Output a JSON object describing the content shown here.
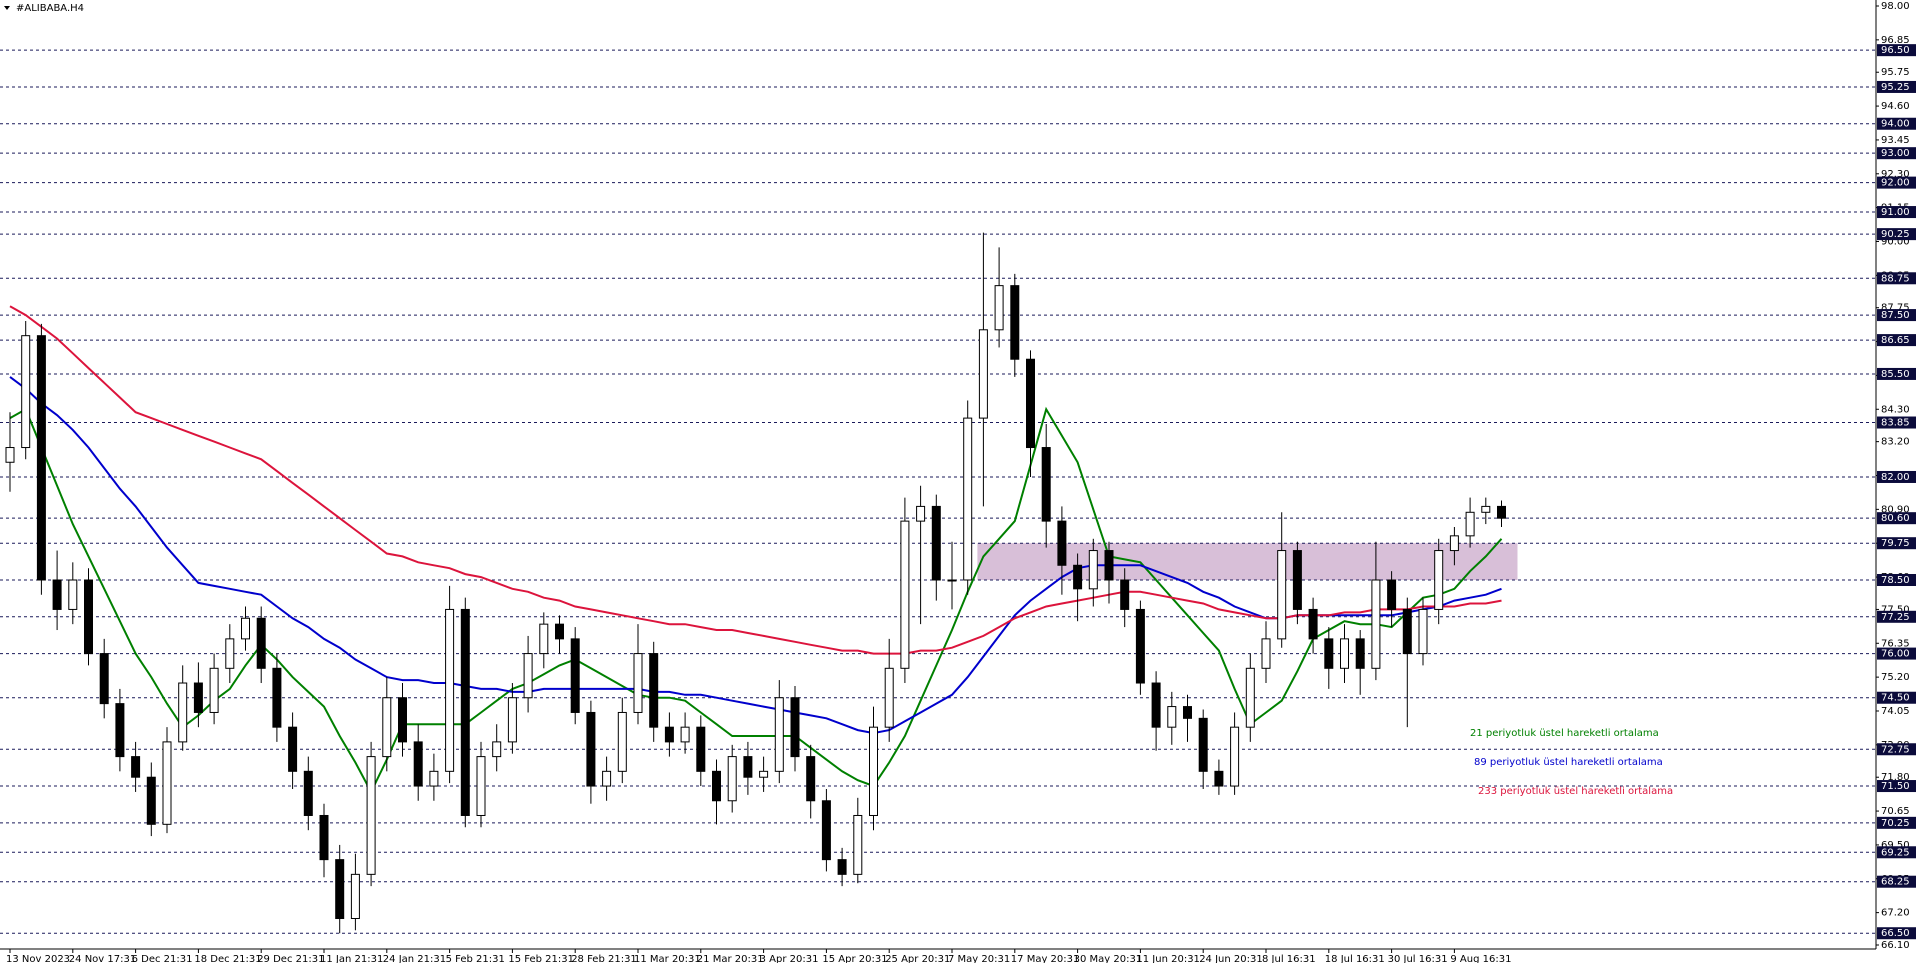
{
  "chart_data": {
    "type": "candlestick",
    "title": "#ALIBABA.H4",
    "ylim": [
      66.1,
      98.0
    ],
    "yticks": [
      {
        "value": 66.1,
        "label": "66.10"
      },
      {
        "value": 67.2,
        "label": "67.20"
      },
      {
        "value": 68.35,
        "label": "68.35"
      },
      {
        "value": 69.5,
        "label": "69.50"
      },
      {
        "value": 70.65,
        "label": "70.65"
      },
      {
        "value": 71.8,
        "label": "71.80"
      },
      {
        "value": 72.9,
        "label": "72.90"
      },
      {
        "value": 74.05,
        "label": "74.05"
      },
      {
        "value": 75.2,
        "label": "75.20"
      },
      {
        "value": 76.35,
        "label": "76.35"
      },
      {
        "value": 77.5,
        "label": "77.50"
      },
      {
        "value": 78.6,
        "label": "78.60"
      },
      {
        "value": 79.75,
        "label": "79.75"
      },
      {
        "value": 80.9,
        "label": "80.90"
      },
      {
        "value": 82.05,
        "label": "82.05"
      },
      {
        "value": 83.2,
        "label": "83.20"
      },
      {
        "value": 84.3,
        "label": "84.30"
      },
      {
        "value": 85.45,
        "label": "85.45"
      },
      {
        "value": 86.6,
        "label": "86.60"
      },
      {
        "value": 87.75,
        "label": "87.75"
      },
      {
        "value": 88.85,
        "label": "88.85"
      },
      {
        "value": 90.0,
        "label": "90.00"
      },
      {
        "value": 91.15,
        "label": "91.15"
      },
      {
        "value": 92.3,
        "label": "92.30"
      },
      {
        "value": 93.45,
        "label": "93.45"
      },
      {
        "value": 94.6,
        "label": "94.60"
      },
      {
        "value": 95.75,
        "label": "95.75"
      },
      {
        "value": 96.85,
        "label": "96.85"
      },
      {
        "value": 98.0,
        "label": "98.00"
      }
    ],
    "levels": [
      {
        "value": 96.5,
        "label": "96.50"
      },
      {
        "value": 95.25,
        "label": "95.25"
      },
      {
        "value": 94.0,
        "label": "94.00"
      },
      {
        "value": 93.0,
        "label": "93.00"
      },
      {
        "value": 92.0,
        "label": "92.00"
      },
      {
        "value": 91.0,
        "label": "91.00"
      },
      {
        "value": 90.25,
        "label": "90.25"
      },
      {
        "value": 88.75,
        "label": "88.75"
      },
      {
        "value": 87.5,
        "label": "87.50"
      },
      {
        "value": 86.65,
        "label": "86.65"
      },
      {
        "value": 85.5,
        "label": "85.50"
      },
      {
        "value": 83.85,
        "label": "83.85"
      },
      {
        "value": 82.0,
        "label": "82.00"
      },
      {
        "value": 80.6,
        "label": "80.60"
      },
      {
        "value": 79.75,
        "label": "79.75"
      },
      {
        "value": 78.5,
        "label": "78.50"
      },
      {
        "value": 77.25,
        "label": "77.25"
      },
      {
        "value": 76.0,
        "label": "76.00"
      },
      {
        "value": 74.5,
        "label": "74.50"
      },
      {
        "value": 72.75,
        "label": "72.75"
      },
      {
        "value": 71.5,
        "label": "71.50"
      },
      {
        "value": 70.25,
        "label": "70.25"
      },
      {
        "value": 69.25,
        "label": "69.25"
      },
      {
        "value": 68.25,
        "label": "68.25"
      },
      {
        "value": 66.5,
        "label": "66.50"
      }
    ],
    "zone": [
      78.5,
      79.75
    ],
    "zone_color": "#d8bfd8",
    "categories": [
      "13 Nov 2023",
      null,
      null,
      null,
      "24 Nov 17:31",
      null,
      null,
      null,
      "6 Dec 21:31",
      null,
      null,
      null,
      "18 Dec 21:31",
      null,
      null,
      null,
      "29 Dec 21:31",
      null,
      null,
      null,
      "11 Jan 21:31",
      null,
      null,
      null,
      "24 Jan 21:31",
      null,
      null,
      null,
      "5 Feb 21:31",
      null,
      null,
      null,
      "15 Feb 21:31",
      null,
      null,
      null,
      "28 Feb 21:31",
      null,
      null,
      null,
      "11 Mar 20:31",
      null,
      null,
      null,
      "21 Mar 20:31",
      null,
      null,
      null,
      "3 Apr 20:31",
      null,
      null,
      null,
      "15 Apr 20:31",
      null,
      null,
      null,
      "25 Apr 20:31",
      null,
      null,
      null,
      "7 May 20:31",
      null,
      null,
      null,
      "17 May 20:31",
      null,
      null,
      null,
      "30 May 20:31",
      null,
      null,
      null,
      "11 Jun 20:31",
      null,
      null,
      null,
      "24 Jun 20:31",
      null,
      null,
      null,
      "8 Jul 16:31",
      null,
      null,
      null,
      "18 Jul 16:31",
      null,
      null,
      null,
      "30 Jul 16:31",
      null,
      null,
      null,
      "9 Aug 16:31",
      null,
      null,
      null
    ],
    "open": [
      82.5,
      83.0,
      86.8,
      78.5,
      77.5,
      78.5,
      76.0,
      74.3,
      72.5,
      71.8,
      70.2,
      73.0,
      75.0,
      74.0,
      75.5,
      76.5,
      77.2,
      75.5,
      73.5,
      72.0,
      70.5,
      69.0,
      67.0,
      68.5,
      72.5,
      74.5,
      73.0,
      71.5,
      72.0,
      77.5,
      70.5,
      72.5,
      73.0,
      74.5,
      76.0,
      77.0,
      76.5,
      74.0,
      71.5,
      72.0,
      74.0,
      76.0,
      73.5,
      73.0,
      73.5,
      72.0,
      71.0,
      72.5,
      71.8,
      72.0,
      74.5,
      72.5,
      71.0,
      69.0,
      68.5,
      70.5,
      73.5,
      75.5,
      80.5,
      81.0,
      78.5,
      78.5,
      84.0,
      87.0,
      88.5,
      86.0,
      83.0,
      80.5,
      79.0,
      78.2,
      79.5,
      78.5,
      77.5,
      75.0,
      73.5,
      74.2,
      73.8,
      72.0,
      71.5,
      73.5,
      75.5,
      76.5,
      79.5,
      77.5,
      76.5,
      75.5,
      76.5,
      75.5,
      78.5,
      77.5,
      76.0,
      77.5,
      79.5,
      80.0,
      80.8,
      81.0
    ],
    "high": [
      84.2,
      87.3,
      87.2,
      79.5,
      79.1,
      78.9,
      76.5,
      74.8,
      73.0,
      72.3,
      73.5,
      75.6,
      75.7,
      76.0,
      77.0,
      77.6,
      77.6,
      76.0,
      74.0,
      72.5,
      70.9,
      69.5,
      69.2,
      73.0,
      75.2,
      75.0,
      73.6,
      72.6,
      78.3,
      77.9,
      73.0,
      73.6,
      75.0,
      76.6,
      77.4,
      77.3,
      76.9,
      74.4,
      72.5,
      74.5,
      77.0,
      76.4,
      74.0,
      74.0,
      73.9,
      72.4,
      72.9,
      73.0,
      72.5,
      75.1,
      74.9,
      72.9,
      71.4,
      69.4,
      71.1,
      74.2,
      76.5,
      81.3,
      81.7,
      81.4,
      79.8,
      84.6,
      90.3,
      89.8,
      88.9,
      86.3,
      83.8,
      81.0,
      79.4,
      79.9,
      79.8,
      78.9,
      77.8,
      75.4,
      74.7,
      74.6,
      74.1,
      72.4,
      74.0,
      76.0,
      77.1,
      80.8,
      79.8,
      77.9,
      76.9,
      77.0,
      76.8,
      79.8,
      78.8,
      77.9,
      77.9,
      79.9,
      80.3,
      81.3,
      81.3,
      81.2
    ],
    "low": [
      81.5,
      82.6,
      78.0,
      76.8,
      77.0,
      75.6,
      73.8,
      72.0,
      71.3,
      69.8,
      69.9,
      72.7,
      73.5,
      73.6,
      75.0,
      76.1,
      75.0,
      73.0,
      71.4,
      70.0,
      68.4,
      66.5,
      66.6,
      68.1,
      72.0,
      72.5,
      71.0,
      71.0,
      71.6,
      70.1,
      70.1,
      72.0,
      72.6,
      74.0,
      75.5,
      76.0,
      73.6,
      70.9,
      71.0,
      71.6,
      73.6,
      73.0,
      72.5,
      72.6,
      71.5,
      70.2,
      70.6,
      71.2,
      71.3,
      71.6,
      72.0,
      70.4,
      68.6,
      68.1,
      68.2,
      70.0,
      73.0,
      75.0,
      77.0,
      77.8,
      77.5,
      78.0,
      81.0,
      86.4,
      85.4,
      82.0,
      79.6,
      78.0,
      77.1,
      77.6,
      77.7,
      76.9,
      74.6,
      72.7,
      72.9,
      73.0,
      71.4,
      71.2,
      71.2,
      73.0,
      75.0,
      76.2,
      77.0,
      76.0,
      74.8,
      75.0,
      74.6,
      75.1,
      76.9,
      73.5,
      75.6,
      77.0,
      79.0,
      79.6,
      80.4,
      80.3
    ],
    "close": [
      83.0,
      86.8,
      78.5,
      77.5,
      78.5,
      76.0,
      74.3,
      72.5,
      71.8,
      70.2,
      73.0,
      75.0,
      74.0,
      75.5,
      76.5,
      77.2,
      75.5,
      73.5,
      72.0,
      70.5,
      69.0,
      67.0,
      68.5,
      72.5,
      74.5,
      73.0,
      71.5,
      72.0,
      77.5,
      70.5,
      72.5,
      73.0,
      74.5,
      76.0,
      77.0,
      76.5,
      74.0,
      71.5,
      72.0,
      74.0,
      76.0,
      73.5,
      73.0,
      73.5,
      72.0,
      71.0,
      72.5,
      71.8,
      72.0,
      74.5,
      72.5,
      71.0,
      69.0,
      68.5,
      70.5,
      73.5,
      75.5,
      80.5,
      81.0,
      78.5,
      78.5,
      84.0,
      87.0,
      88.5,
      86.0,
      83.0,
      80.5,
      79.0,
      78.2,
      79.5,
      78.5,
      77.5,
      75.0,
      73.5,
      74.2,
      73.8,
      72.0,
      71.5,
      73.5,
      75.5,
      76.5,
      79.5,
      77.5,
      76.5,
      75.5,
      76.5,
      75.5,
      78.5,
      77.5,
      76.0,
      77.5,
      79.5,
      80.0,
      80.8,
      81.0,
      80.6
    ],
    "series": [
      {
        "name": "21 periyotluk üstel hareketli ortalama",
        "color": "#008000",
        "values": [
          84.0,
          84.3,
          83.0,
          81.7,
          80.4,
          79.3,
          78.2,
          77.1,
          76.0,
          75.2,
          74.3,
          73.5,
          73.9,
          74.4,
          74.8,
          75.6,
          76.3,
          75.8,
          75.2,
          74.7,
          74.2,
          73.2,
          72.3,
          71.3,
          72.4,
          73.6,
          73.6,
          73.6,
          73.6,
          73.6,
          74.0,
          74.4,
          74.8,
          75.0,
          75.3,
          75.6,
          75.8,
          75.5,
          75.2,
          74.9,
          74.6,
          74.5,
          74.5,
          74.4,
          74.0,
          73.6,
          73.2,
          73.2,
          73.2,
          73.2,
          73.2,
          72.8,
          72.4,
          72.0,
          71.7,
          71.5,
          72.3,
          73.2,
          74.4,
          75.6,
          76.8,
          78.1,
          79.3,
          79.9,
          80.5,
          82.4,
          84.3,
          83.4,
          82.5,
          80.9,
          79.3,
          79.2,
          79.1,
          78.5,
          77.9,
          77.3,
          76.7,
          76.1,
          74.8,
          73.6,
          74.0,
          74.4,
          75.4,
          76.5,
          76.8,
          77.1,
          77.0,
          77.0,
          76.9,
          77.4,
          77.9,
          78.0,
          78.2,
          78.8,
          79.3,
          79.9
        ]
      },
      {
        "name": "89 periyotluk üstel hareketli ortalama",
        "color": "#0000cc",
        "values": [
          85.4,
          85.0,
          84.5,
          84.1,
          83.6,
          83.0,
          82.3,
          81.6,
          81.0,
          80.3,
          79.6,
          79.0,
          78.4,
          78.3,
          78.2,
          78.1,
          78.0,
          77.6,
          77.2,
          76.9,
          76.5,
          76.2,
          75.8,
          75.5,
          75.2,
          75.1,
          75.1,
          75.0,
          75.0,
          74.9,
          74.8,
          74.8,
          74.7,
          74.7,
          74.8,
          74.8,
          74.8,
          74.8,
          74.8,
          74.8,
          74.8,
          74.7,
          74.7,
          74.6,
          74.6,
          74.5,
          74.4,
          74.3,
          74.2,
          74.1,
          74.0,
          73.9,
          73.8,
          73.6,
          73.4,
          73.3,
          73.4,
          73.7,
          74.0,
          74.3,
          74.6,
          75.2,
          75.9,
          76.6,
          77.3,
          77.8,
          78.2,
          78.6,
          78.9,
          79.0,
          79.0,
          79.0,
          79.0,
          78.8,
          78.6,
          78.4,
          78.1,
          77.9,
          77.6,
          77.4,
          77.2,
          77.2,
          77.3,
          77.3,
          77.3,
          77.3,
          77.3,
          77.3,
          77.3,
          77.4,
          77.5,
          77.6,
          77.8,
          77.9,
          78.0,
          78.2
        ]
      },
      {
        "name": "233 periyotluk üstel hareketli ortalama",
        "color": "#dc143c",
        "values": [
          87.8,
          87.5,
          87.1,
          86.7,
          86.2,
          85.7,
          85.2,
          84.7,
          84.2,
          84.0,
          83.8,
          83.6,
          83.4,
          83.2,
          83.0,
          82.8,
          82.6,
          82.2,
          81.8,
          81.4,
          81.0,
          80.6,
          80.2,
          79.8,
          79.4,
          79.3,
          79.1,
          79.0,
          78.9,
          78.7,
          78.6,
          78.4,
          78.2,
          78.1,
          77.9,
          77.8,
          77.6,
          77.5,
          77.4,
          77.3,
          77.2,
          77.1,
          77.0,
          77.0,
          76.9,
          76.8,
          76.8,
          76.7,
          76.6,
          76.5,
          76.4,
          76.3,
          76.2,
          76.1,
          76.1,
          76.0,
          76.0,
          76.0,
          76.1,
          76.1,
          76.2,
          76.4,
          76.6,
          76.9,
          77.2,
          77.4,
          77.6,
          77.7,
          77.8,
          77.9,
          78.0,
          78.1,
          78.1,
          78.0,
          77.9,
          77.8,
          77.7,
          77.5,
          77.4,
          77.3,
          77.2,
          77.2,
          77.3,
          77.3,
          77.3,
          77.4,
          77.4,
          77.5,
          77.5,
          77.5,
          77.6,
          77.6,
          77.6,
          77.7,
          77.7,
          77.8
        ]
      }
    ]
  }
}
